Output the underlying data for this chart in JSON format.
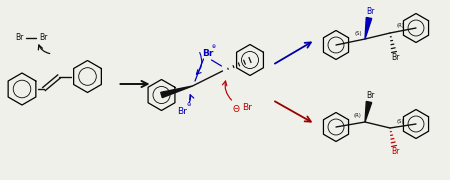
{
  "bg_color": "#f0f0eb",
  "black": "#111111",
  "blue": "#0000bb",
  "red": "#bb0000",
  "arrow_blue": "#0000aa",
  "arrow_red": "#990000",
  "figsize": [
    4.5,
    1.8
  ],
  "dpi": 100,
  "xlim": [
    0,
    9.0
  ],
  "ylim": [
    0,
    3.6
  ]
}
